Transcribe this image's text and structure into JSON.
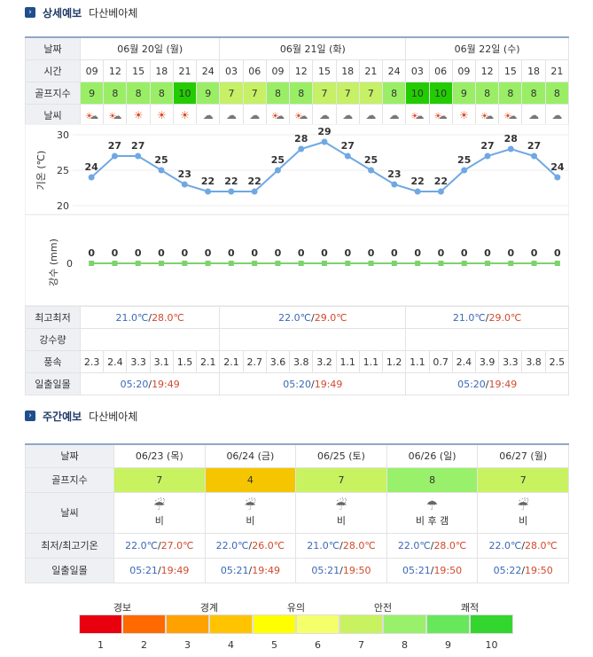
{
  "detail": {
    "title": "상세예보",
    "place": "다산베아체",
    "row_labels": {
      "date": "날짜",
      "time": "시간",
      "golf": "골프지수",
      "weather": "날씨",
      "max_min": "최고최저",
      "rain": "강수량",
      "wind": "풍속",
      "sun": "일출일몰"
    },
    "dates": [
      "06월 20일 (월)",
      "06월 21일 (화)",
      "06월 22일 (수)"
    ],
    "times": [
      "09",
      "12",
      "15",
      "18",
      "21",
      "24",
      "03",
      "06",
      "09",
      "12",
      "15",
      "18",
      "21",
      "24",
      "03",
      "06",
      "09",
      "12",
      "15",
      "18",
      "21"
    ],
    "golf": [
      "9",
      "8",
      "8",
      "8",
      "10",
      "9",
      "7",
      "7",
      "8",
      "8",
      "7",
      "7",
      "7",
      "8",
      "10",
      "10",
      "9",
      "8",
      "8",
      "8",
      "8"
    ],
    "weather_icons": [
      "partly-sunny",
      "partly-sunny",
      "sunny",
      "sunny",
      "sunny",
      "cloudy",
      "cloudy",
      "cloudy",
      "partly-sunny",
      "partly-sunny",
      "cloudy",
      "cloudy",
      "cloudy",
      "cloudy",
      "partly-sunny",
      "partly-sunny",
      "sunny",
      "partly-sunny",
      "partly-sunny",
      "cloudy",
      "cloudy"
    ],
    "max_min": [
      {
        "min": "21.0℃",
        "max": "28.0℃"
      },
      {
        "min": "22.0℃",
        "max": "29.0℃"
      },
      {
        "min": "21.0℃",
        "max": "29.0℃"
      }
    ],
    "wind": [
      "2.3",
      "2.4",
      "3.3",
      "3.1",
      "1.5",
      "2.1",
      "2.1",
      "2.7",
      "3.6",
      "3.8",
      "3.2",
      "1.1",
      "1.1",
      "1.2",
      "1.1",
      "0.7",
      "2.4",
      "3.9",
      "3.3",
      "3.8",
      "2.5"
    ],
    "sun": [
      {
        "rise": "05:20",
        "set": "19:49"
      },
      {
        "rise": "05:20",
        "set": "19:49"
      },
      {
        "rise": "05:20",
        "set": "19:49"
      }
    ]
  },
  "chart_data": [
    {
      "type": "line",
      "ylabel": "기온 (℃)",
      "yticks": [
        "30",
        "25",
        "20"
      ],
      "ylim": [
        20,
        30
      ],
      "values": [
        24,
        27,
        27,
        25,
        23,
        22,
        22,
        22,
        25,
        28,
        29,
        27,
        25,
        23,
        22,
        22,
        25,
        27,
        28,
        27,
        24
      ],
      "color": "#6fa8e3"
    },
    {
      "type": "line",
      "ylabel": "강수 (mm)",
      "yticks": [
        "0"
      ],
      "values": [
        0,
        0,
        0,
        0,
        0,
        0,
        0,
        0,
        0,
        0,
        0,
        0,
        0,
        0,
        0,
        0,
        0,
        0,
        0,
        0,
        0
      ],
      "color": "#7cd36b"
    }
  ],
  "weekly": {
    "title": "주간예보",
    "place": "다산베아체",
    "row_labels": {
      "date": "날짜",
      "golf": "골프지수",
      "weather": "날씨",
      "temp": "최저/최고기온",
      "sun": "일출일몰"
    },
    "days": [
      {
        "date": "06/23 (목)",
        "golf": "7",
        "golf_color": "#c8f260",
        "icon": "rain-cloud-icon",
        "weather": "비",
        "min": "22.0℃",
        "max": "27.0℃",
        "rise": "05:21",
        "set": "19:49"
      },
      {
        "date": "06/24 (금)",
        "golf": "4",
        "golf_color": "#f5c500",
        "icon": "rain-cloud-icon",
        "weather": "비",
        "min": "22.0℃",
        "max": "26.0℃",
        "rise": "05:21",
        "set": "19:49"
      },
      {
        "date": "06/25 (토)",
        "golf": "7",
        "golf_color": "#c8f260",
        "icon": "rain-cloud-icon",
        "weather": "비",
        "min": "21.0℃",
        "max": "28.0℃",
        "rise": "05:21",
        "set": "19:50"
      },
      {
        "date": "06/26 (일)",
        "golf": "8",
        "golf_color": "#99f06b",
        "icon": "rain-then-clear-icon",
        "weather": "비 후 갬",
        "min": "22.0℃",
        "max": "28.0℃",
        "rise": "05:21",
        "set": "19:50"
      },
      {
        "date": "06/27 (월)",
        "golf": "7",
        "golf_color": "#c8f260",
        "icon": "rain-cloud-icon",
        "weather": "비",
        "min": "22.0℃",
        "max": "28.0℃",
        "rise": "05:22",
        "set": "19:50"
      }
    ]
  },
  "legend": {
    "labels": [
      "경보",
      "경계",
      "유의",
      "안전",
      "쾌적"
    ],
    "numbers": [
      "1",
      "2",
      "3",
      "4",
      "5",
      "6",
      "7",
      "8",
      "9",
      "10"
    ],
    "colors": [
      "#e8000f",
      "#ff6a00",
      "#ffa200",
      "#ffc300",
      "#ffff00",
      "#f5ff6a",
      "#c8f260",
      "#99f06b",
      "#66e85a",
      "#33d62e"
    ]
  },
  "golf_colors": {
    "10": "#22cc00",
    "9": "#99ee66",
    "8": "#99ee66",
    "7": "#c6f066",
    "4": "#ffc300"
  }
}
